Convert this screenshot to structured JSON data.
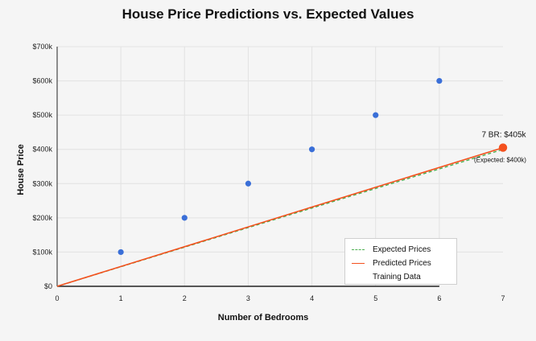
{
  "chart_data": {
    "type": "line",
    "title": "House Price Predictions vs. Expected Values",
    "xlabel": "Number of Bedrooms",
    "ylabel": "House Price",
    "xlim": [
      0,
      7
    ],
    "ylim": [
      0,
      700
    ],
    "x_ticks": [
      "0",
      "1",
      "2",
      "3",
      "4",
      "5",
      "6",
      "7"
    ],
    "y_ticks": [
      "$0",
      "$100k",
      "$200k",
      "$300k",
      "$400k",
      "$500k",
      "$600k",
      "$700k"
    ],
    "grid": true,
    "legend_position": "bottom-right",
    "training_points": {
      "name": "Training Data",
      "x": [
        1,
        2,
        3,
        4,
        5,
        6
      ],
      "y": [
        100,
        200,
        300,
        400,
        500,
        600
      ],
      "color": "#3a6fd8"
    },
    "series": [
      {
        "name": "Expected Prices",
        "x": [
          0,
          7
        ],
        "y": [
          0,
          400
        ],
        "style": "dashed",
        "color": "#4caf50"
      },
      {
        "name": "Predicted Prices",
        "x": [
          0,
          7
        ],
        "y": [
          0,
          405
        ],
        "style": "solid",
        "color": "#f4511e"
      }
    ],
    "highlight_point": {
      "x": 7,
      "y": 405,
      "color": "#f4511e"
    },
    "annotations": {
      "prediction": "7 BR: $405k",
      "expected": "(Expected: $400k)"
    }
  }
}
